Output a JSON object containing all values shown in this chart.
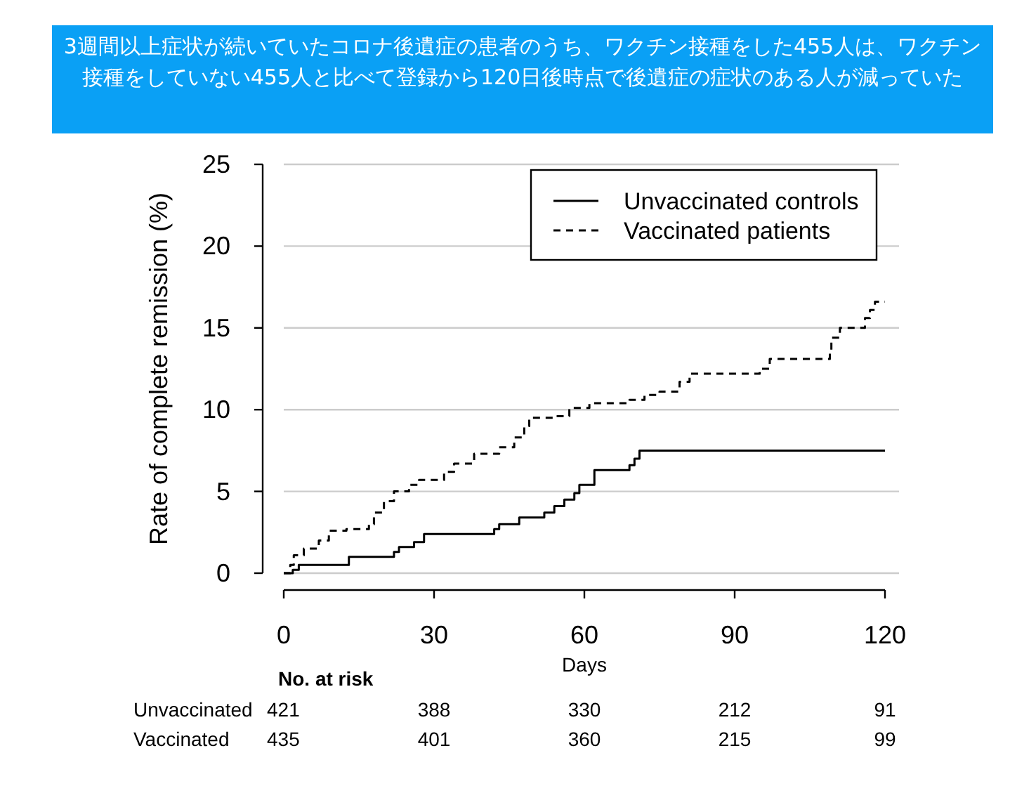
{
  "chart_data": {
    "type": "step",
    "title": "3週間以上症状が続いていたコロナ後遺症の患者のうち、ワクチン接種をした455人は、ワクチン接種をしていない455人と比べて登録から120日後時点で後遺症の症状のある人が減っていた",
    "xlabel": "Days",
    "ylabel": "Rate of complete remission (%)",
    "xlim": [
      0,
      120
    ],
    "xticks": [
      0,
      30,
      60,
      90,
      120
    ],
    "ylim": [
      0,
      25
    ],
    "yticks": [
      0,
      5,
      10,
      15,
      20,
      25
    ],
    "grid": "y",
    "legend": "top right",
    "series": [
      {
        "name": "Unvaccinated controls",
        "color": "#000000",
        "line_style": "solid",
        "x": [
          0,
          1.8,
          3,
          13,
          22,
          23,
          26,
          28,
          42,
          43,
          47,
          52,
          54,
          56,
          58,
          59,
          62,
          69,
          70,
          71,
          120
        ],
        "values": [
          0,
          0.2,
          0.5,
          1.0,
          1.3,
          1.6,
          1.9,
          2.4,
          2.7,
          3.0,
          3.4,
          3.7,
          4.1,
          4.5,
          4.9,
          5.4,
          6.3,
          6.6,
          7.0,
          7.5,
          7.5
        ]
      },
      {
        "name": "Vaccinated patients",
        "color": "#000000",
        "line_style": "dashed",
        "x": [
          0,
          1.3,
          2,
          4,
          7,
          9,
          12.5,
          17,
          18,
          20,
          22,
          25,
          27,
          32,
          34,
          38,
          43,
          46,
          48,
          49,
          54,
          57,
          61,
          69,
          72,
          75,
          79,
          81,
          95,
          97,
          109,
          109.3,
          111,
          116,
          117,
          118,
          120
        ],
        "values": [
          0,
          0.5,
          1.1,
          1.5,
          2.0,
          2.6,
          2.7,
          3.0,
          3.7,
          4.4,
          5.0,
          5.4,
          5.7,
          6.2,
          6.7,
          7.3,
          7.7,
          8.3,
          9.0,
          9.5,
          9.6,
          10.1,
          10.4,
          10.6,
          10.9,
          11.1,
          11.7,
          12.2,
          12.5,
          13.1,
          13.6,
          14.4,
          15.0,
          15.6,
          16.1,
          16.6,
          16.6
        ]
      }
    ],
    "annotations": [
      "No. at risk",
      "Unvaccinated",
      "421",
      "388",
      "330",
      "212",
      "91",
      "Vaccinated",
      "435",
      "401",
      "360",
      "215",
      "99"
    ]
  }
}
